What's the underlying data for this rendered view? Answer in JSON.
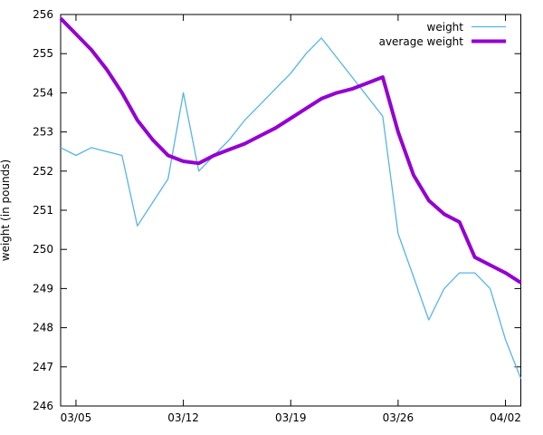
{
  "chart_data": {
    "type": "line",
    "title": "",
    "xlabel": "",
    "ylabel": "weight (in pounds)",
    "ylim": [
      246,
      256
    ],
    "ytick_step": 1,
    "grid": false,
    "legend_position": "top-right",
    "x_dates": [
      "03/04",
      "03/05",
      "03/06",
      "03/07",
      "03/08",
      "03/09",
      "03/10",
      "03/11",
      "03/12",
      "03/13",
      "03/14",
      "03/15",
      "03/16",
      "03/17",
      "03/18",
      "03/19",
      "03/20",
      "03/21",
      "03/22",
      "03/23",
      "03/24",
      "03/25",
      "03/26",
      "03/27",
      "03/28",
      "03/29",
      "03/30",
      "03/31",
      "04/01",
      "04/02",
      "04/03"
    ],
    "xticks": [
      {
        "label": "03/05",
        "day": 1
      },
      {
        "label": "03/12",
        "day": 8
      },
      {
        "label": "03/19",
        "day": 15
      },
      {
        "label": "03/26",
        "day": 22
      },
      {
        "label": "04/02",
        "day": 29
      }
    ],
    "series": [
      {
        "name": "weight",
        "color": "#56b4e9",
        "stroke_width": 1.3,
        "values": [
          252.6,
          252.4,
          252.6,
          252.5,
          252.4,
          250.6,
          251.2,
          251.8,
          254.0,
          252.0,
          252.4,
          252.8,
          253.3,
          253.7,
          254.1,
          254.5,
          255.0,
          255.4,
          254.9,
          254.4,
          253.9,
          253.4,
          250.4,
          249.3,
          248.2,
          249.0,
          249.4,
          249.4,
          249.0,
          247.7,
          246.7
        ]
      },
      {
        "name": "average weight",
        "color": "#9400d3",
        "stroke_width": 4,
        "values": [
          255.9,
          255.5,
          255.1,
          254.6,
          254.0,
          253.3,
          252.8,
          252.4,
          252.25,
          252.2,
          252.4,
          252.55,
          252.7,
          252.9,
          253.1,
          253.35,
          253.6,
          253.85,
          254.0,
          254.1,
          254.25,
          254.4,
          253.0,
          251.9,
          251.25,
          250.9,
          250.7,
          249.8,
          249.6,
          249.4,
          249.15
        ]
      }
    ],
    "axis_color": "#000000",
    "background_color": "#ffffff"
  }
}
